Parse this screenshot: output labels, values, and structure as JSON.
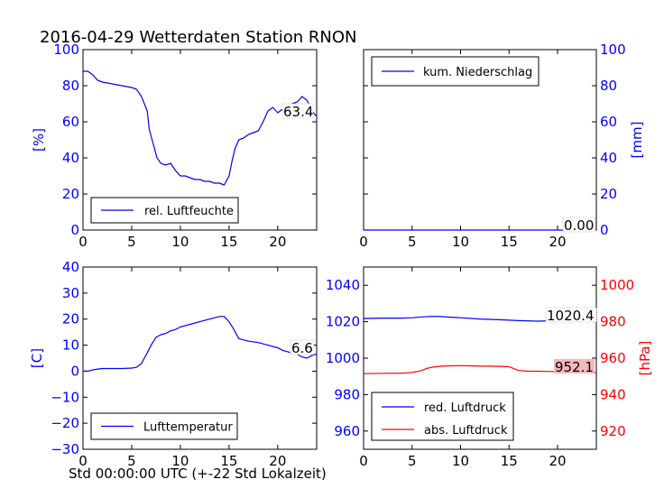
{
  "title": "2016-04-29 Wetterdaten Station RNON",
  "xlabel": "Std 00:00:00 UTC (+-22 Std Lokalzeit)",
  "colors": {
    "blue": "#0000ff",
    "red": "#ff0000",
    "axis": "#000000",
    "last_red_bg": "#f4b8b8"
  },
  "chart_data": [
    {
      "id": "humidity",
      "type": "line",
      "ylabel": "[%]",
      "xlim": [
        0,
        24
      ],
      "ylim": [
        0,
        100
      ],
      "xticks": [
        "0",
        "5",
        "10",
        "15",
        "20"
      ],
      "yticks": [
        "0",
        "20",
        "40",
        "60",
        "80",
        "100"
      ],
      "legend": "lower-left",
      "series": [
        {
          "name": "rel. Luftfeuchte",
          "color": "#0000ff",
          "x": [
            0,
            0.5,
            1,
            1.5,
            2,
            3,
            4,
            5,
            5.5,
            6,
            6.3,
            6.6,
            6.8,
            7,
            7.3,
            7.6,
            8,
            8.5,
            9,
            9.5,
            10,
            10.5,
            11,
            11.5,
            12,
            12.5,
            13,
            13.5,
            14,
            14.5,
            15,
            15.3,
            15.6,
            16,
            16.5,
            17,
            17.5,
            18,
            18.5,
            19,
            19.5,
            20,
            20.5,
            21,
            21.5,
            22,
            22.5,
            23,
            23.5,
            24
          ],
          "y": [
            88,
            88,
            86,
            83,
            82,
            81,
            80,
            79,
            78,
            74,
            70,
            66,
            56,
            52,
            46,
            40,
            37,
            36,
            37,
            33,
            30,
            30,
            29,
            28,
            28,
            27,
            27,
            26,
            26,
            25,
            30,
            38,
            45,
            50,
            51,
            53,
            54,
            55,
            60,
            66,
            68,
            65,
            67,
            69,
            70,
            71,
            74,
            72,
            66,
            63
          ]
        }
      ],
      "last_value_label": "63.4"
    },
    {
      "id": "precipitation",
      "type": "line",
      "ylabel": "[mm]",
      "xlim": [
        0,
        24
      ],
      "ylim": [
        0,
        100
      ],
      "xticks": [
        "0",
        "5",
        "10",
        "15",
        "20"
      ],
      "yticks": [
        "0",
        "20",
        "40",
        "60",
        "80",
        "100"
      ],
      "legend": "top-left",
      "series": [
        {
          "name": "kum. Niederschlag",
          "color": "#0000ff",
          "x": [
            0,
            24
          ],
          "y": [
            0,
            0
          ]
        }
      ],
      "last_value_label": "0.00"
    },
    {
      "id": "temperature",
      "type": "line",
      "ylabel": "[C]",
      "xlim": [
        0,
        24
      ],
      "ylim": [
        -30,
        40
      ],
      "xticks": [
        "0",
        "5",
        "10",
        "15",
        "20"
      ],
      "yticks": [
        "−30",
        "−20",
        "−10",
        "0",
        "10",
        "20",
        "30",
        "40"
      ],
      "legend": "lower-left",
      "series": [
        {
          "name": "Lufttemperatur",
          "color": "#0000ff",
          "x": [
            0,
            0.5,
            1,
            1.5,
            2,
            3,
            4,
            5,
            5.5,
            6,
            6.3,
            6.6,
            7,
            7.5,
            8,
            8.5,
            9,
            9.5,
            10,
            11,
            12,
            13,
            14,
            14.5,
            15,
            15.5,
            16,
            17,
            18,
            19,
            20,
            20.5,
            21,
            21.5,
            22,
            22.5,
            23,
            23.5,
            24
          ],
          "y": [
            0,
            0,
            0.5,
            0.8,
            1,
            1,
            1,
            1.2,
            1.5,
            3,
            5,
            7,
            10,
            13,
            14,
            14.5,
            15.5,
            16,
            17,
            18,
            19,
            20,
            21,
            21,
            19,
            16,
            12.5,
            11.5,
            11,
            10,
            9,
            8,
            7.5,
            7,
            6.5,
            5.5,
            5,
            6,
            6.6
          ]
        }
      ],
      "last_value_label": "6.6"
    },
    {
      "id": "pressure",
      "type": "line",
      "ylabel": "[hPa]",
      "xlim": [
        0,
        24
      ],
      "ylim_left": [
        950,
        1050
      ],
      "ylim_right": [
        910,
        1010
      ],
      "xticks": [
        "0",
        "5",
        "10",
        "15",
        "20"
      ],
      "yticks_left": [
        "960",
        "980",
        "1000",
        "1020",
        "1040"
      ],
      "yticks_right": [
        "920",
        "940",
        "960",
        "980",
        "1000"
      ],
      "legend": "lower-left",
      "series": [
        {
          "name": "red. Luftdruck",
          "color": "#0000ff",
          "axis": "left",
          "x": [
            0,
            2,
            4,
            5,
            6,
            7,
            8,
            9,
            10,
            12,
            14,
            16,
            18,
            20,
            22,
            24
          ],
          "y": [
            1021.8,
            1022,
            1022,
            1022.2,
            1022.6,
            1022.9,
            1022.8,
            1022.5,
            1022.2,
            1021.5,
            1021.1,
            1020.6,
            1020.3,
            1020.6,
            1020.6,
            1020.4
          ]
        },
        {
          "name": "abs. Luftdruck",
          "color": "#ff0000",
          "axis": "right",
          "x": [
            0,
            2,
            4,
            5,
            5.5,
            6,
            6.5,
            7,
            8,
            9,
            10,
            11,
            12,
            13,
            14,
            15,
            15.5,
            16,
            17,
            18,
            19,
            20,
            21,
            22,
            23,
            24
          ],
          "y": [
            951.5,
            951.7,
            951.8,
            952.2,
            952.6,
            953.2,
            954.3,
            955,
            955.6,
            955.8,
            955.9,
            955.8,
            955.6,
            955.6,
            955.5,
            955.3,
            954.2,
            953.2,
            952.8,
            952.8,
            952.7,
            952.6,
            952.6,
            952.4,
            952.2,
            952.1
          ]
        }
      ],
      "last_value_labels": [
        "1020.4",
        "952.1"
      ]
    }
  ]
}
